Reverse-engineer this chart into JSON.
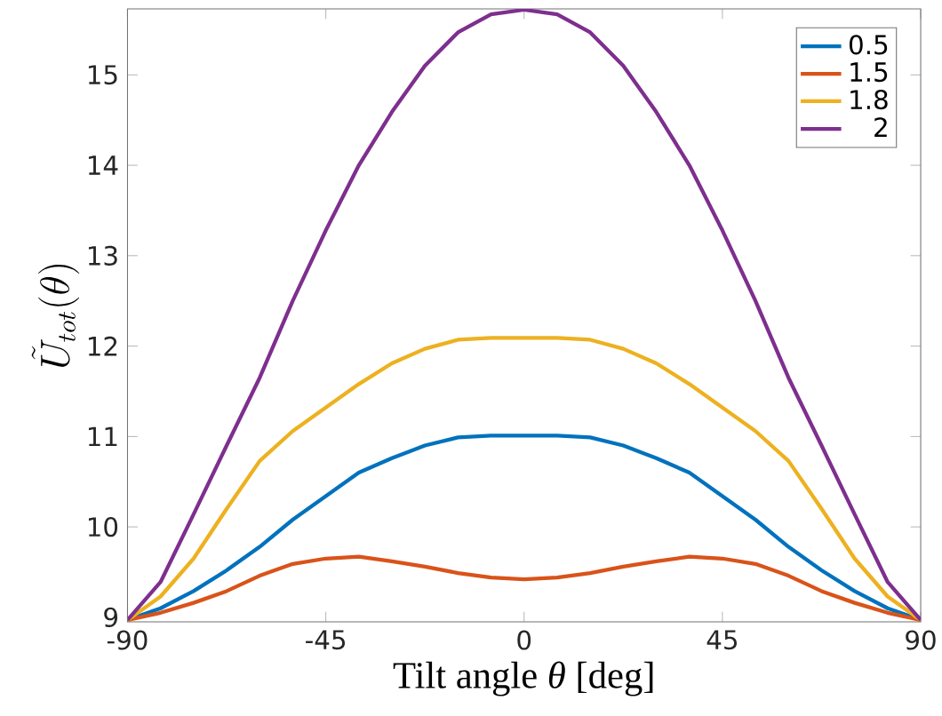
{
  "chart_data": {
    "type": "line",
    "xlabel": "Tilt angle *θ* [deg]",
    "ylabel": "\\tilde{U}_{tot}(\\theta)",
    "x": [
      -90,
      -82.5,
      -75,
      -67.5,
      -60,
      -52.5,
      -45,
      -37.5,
      -30,
      -22.5,
      -15,
      -7.5,
      0,
      7.5,
      15,
      22.5,
      30,
      37.5,
      45,
      52.5,
      60,
      67.5,
      75,
      82.5,
      90
    ],
    "series": [
      {
        "name": "0.5",
        "color": "#0072bd",
        "values": [
          8.97,
          9.1,
          9.29,
          9.52,
          9.78,
          10.08,
          10.34,
          10.6,
          10.76,
          10.9,
          10.99,
          11.01,
          11.01,
          11.01,
          10.99,
          10.9,
          10.76,
          10.6,
          10.34,
          10.08,
          9.78,
          9.52,
          9.29,
          9.1,
          8.97
        ]
      },
      {
        "name": "1.5",
        "color": "#d95319",
        "values": [
          8.97,
          9.05,
          9.16,
          9.29,
          9.46,
          9.59,
          9.65,
          9.67,
          9.62,
          9.56,
          9.49,
          9.44,
          9.42,
          9.44,
          9.49,
          9.56,
          9.62,
          9.67,
          9.65,
          9.59,
          9.46,
          9.29,
          9.16,
          9.05,
          8.97
        ]
      },
      {
        "name": "1.8",
        "color": "#edb120",
        "values": [
          8.97,
          9.23,
          9.65,
          10.2,
          10.73,
          11.06,
          11.32,
          11.58,
          11.81,
          11.97,
          12.07,
          12.09,
          12.09,
          12.09,
          12.07,
          11.97,
          11.81,
          11.58,
          11.32,
          11.06,
          10.73,
          10.2,
          9.65,
          9.23,
          8.97
        ]
      },
      {
        "name": "2",
        "color": "#7e2f8e",
        "values": [
          8.97,
          9.39,
          10.14,
          10.9,
          11.65,
          12.5,
          13.28,
          14.0,
          14.59,
          15.1,
          15.47,
          15.67,
          15.72,
          15.67,
          15.47,
          15.1,
          14.59,
          14.0,
          13.28,
          12.5,
          11.65,
          10.9,
          10.14,
          9.39,
          8.97
        ]
      }
    ],
    "xlim": [
      -90,
      90
    ],
    "ylim": [
      8.95,
      15.73
    ],
    "xticks": [
      -90,
      -45,
      0,
      45,
      90
    ],
    "yticks": [
      9,
      10,
      11,
      12,
      13,
      14,
      15
    ],
    "legend": "top right",
    "grid": false,
    "line_style": "solid",
    "marker": "none"
  }
}
